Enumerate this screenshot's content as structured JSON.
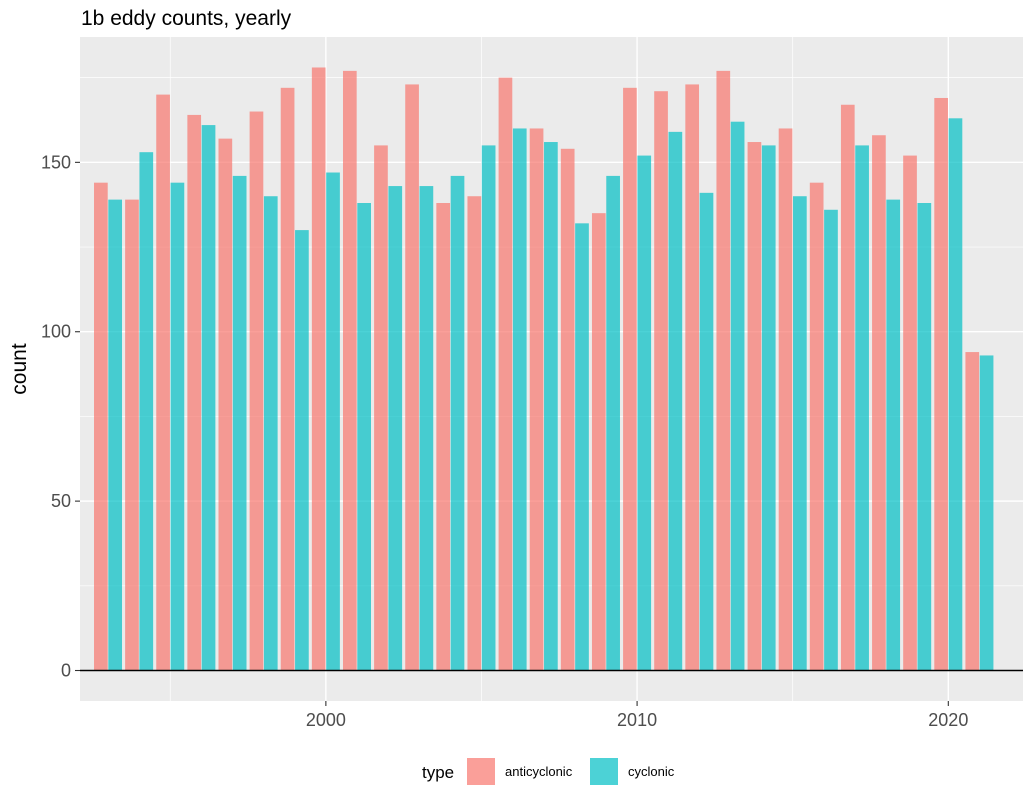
{
  "chart_data": {
    "type": "bar",
    "title": "1b eddy counts, yearly",
    "xlabel": "",
    "ylabel": "count",
    "x_ticks": [
      2000,
      2010,
      2020
    ],
    "y_ticks": [
      0,
      50,
      100,
      150
    ],
    "xlim": [
      1992.1,
      2022.4
    ],
    "ylim": [
      -9,
      187
    ],
    "grid": true,
    "legend": {
      "title": "type",
      "position": "bottom",
      "entries": [
        {
          "label": "anticyclonic",
          "color": "#F8766D"
        },
        {
          "label": "cyclonic",
          "color": "#00BFC4"
        }
      ]
    },
    "categories": [
      1993,
      1994,
      1995,
      1996,
      1997,
      1998,
      1999,
      2000,
      2001,
      2002,
      2003,
      2004,
      2005,
      2006,
      2007,
      2008,
      2009,
      2010,
      2011,
      2012,
      2013,
      2014,
      2015,
      2016,
      2017,
      2018,
      2019,
      2020,
      2021
    ],
    "series": [
      {
        "name": "anticyclonic",
        "color": "#F8766D",
        "values": [
          144,
          139,
          170,
          164,
          157,
          165,
          172,
          178,
          177,
          155,
          173,
          138,
          140,
          175,
          160,
          154,
          135,
          172,
          171,
          173,
          177,
          156,
          160,
          144,
          167,
          158,
          152,
          169,
          94
        ]
      },
      {
        "name": "cyclonic",
        "color": "#00BFC4",
        "values": [
          139,
          153,
          144,
          161,
          146,
          140,
          130,
          147,
          138,
          143,
          143,
          146,
          155,
          160,
          156,
          132,
          146,
          152,
          159,
          141,
          162,
          155,
          140,
          136,
          155,
          139,
          138,
          163,
          93
        ]
      }
    ]
  }
}
